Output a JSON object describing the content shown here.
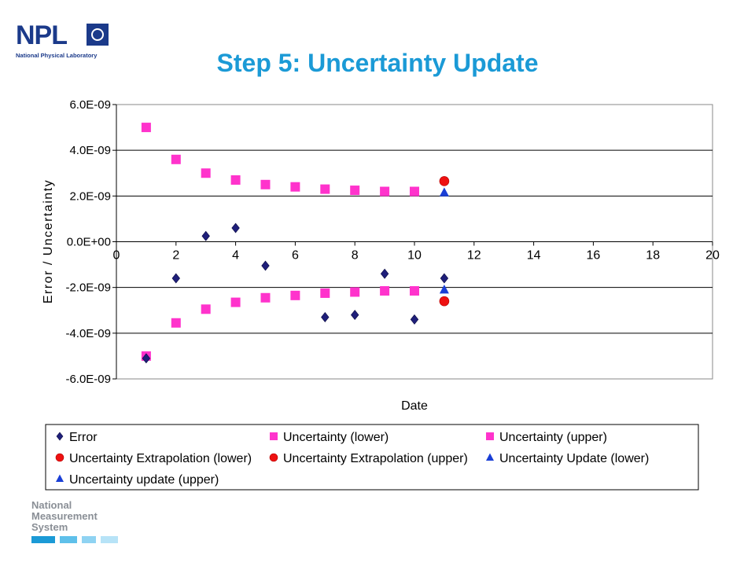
{
  "logo": {
    "text": "NPL",
    "subtitle": "National Physical Laboratory"
  },
  "title": "Step 5: Uncertainty Update",
  "footer": {
    "lines": [
      "National",
      "Measurement",
      "System"
    ]
  },
  "chart_data": {
    "type": "scatter",
    "title": "",
    "xlabel": "Date",
    "ylabel": "Error / Uncertainty",
    "xlim": [
      0,
      20
    ],
    "ylim": [
      -6e-09,
      6e-09
    ],
    "x_ticks": [
      0,
      2,
      4,
      6,
      8,
      10,
      12,
      14,
      16,
      18,
      20
    ],
    "y_ticks": [
      6e-09,
      4e-09,
      2e-09,
      0,
      -2e-09,
      -4e-09,
      -6e-09
    ],
    "y_tick_labels": [
      "6.0E-09",
      "4.0E-09",
      "2.0E-09",
      "0.0E+00",
      "-2.0E-09",
      "-4.0E-09",
      "-6.0E-09"
    ],
    "grid": "horizontal",
    "legend_position": "bottom",
    "series": [
      {
        "name": "Error",
        "marker": "diamond",
        "color": "#1f1f7a",
        "x": [
          1,
          2,
          3,
          4,
          5,
          7,
          8,
          9,
          10,
          11
        ],
        "y": [
          -5.1e-09,
          -1.6e-09,
          2.5e-10,
          6e-10,
          -1.05e-09,
          -3.3e-09,
          -3.2e-09,
          -1.4e-09,
          -3.4e-09,
          -1.6e-09
        ]
      },
      {
        "name": "Uncertainty (lower)",
        "marker": "square",
        "color": "#ff33cc",
        "x": [
          1,
          2,
          3,
          4,
          5,
          6,
          7,
          8,
          9,
          10
        ],
        "y": [
          -5e-09,
          -3.55e-09,
          -2.95e-09,
          -2.65e-09,
          -2.45e-09,
          -2.35e-09,
          -2.25e-09,
          -2.2e-09,
          -2.15e-09,
          -2.15e-09
        ]
      },
      {
        "name": "Uncertainty (upper)",
        "marker": "square",
        "color": "#ff33cc",
        "x": [
          1,
          2,
          3,
          4,
          5,
          6,
          7,
          8,
          9,
          10
        ],
        "y": [
          5e-09,
          3.6e-09,
          3e-09,
          2.7e-09,
          2.5e-09,
          2.4e-09,
          2.3e-09,
          2.25e-09,
          2.2e-09,
          2.2e-09
        ]
      },
      {
        "name": "Uncertainty Extrapolation (lower)",
        "marker": "circle",
        "color": "#ee1111",
        "x": [
          11
        ],
        "y": [
          -2.6e-09
        ]
      },
      {
        "name": "Uncertainty Extrapolation (upper)",
        "marker": "circle",
        "color": "#ee1111",
        "x": [
          11
        ],
        "y": [
          2.65e-09
        ]
      },
      {
        "name": "Uncertainty Update (lower)",
        "marker": "triangle",
        "color": "#1a3fd6",
        "x": [
          11
        ],
        "y": [
          -2.1e-09
        ]
      },
      {
        "name": "Uncertainty update (upper)",
        "marker": "triangle",
        "color": "#1a3fd6",
        "x": [
          11
        ],
        "y": [
          2.15e-09
        ]
      }
    ]
  }
}
